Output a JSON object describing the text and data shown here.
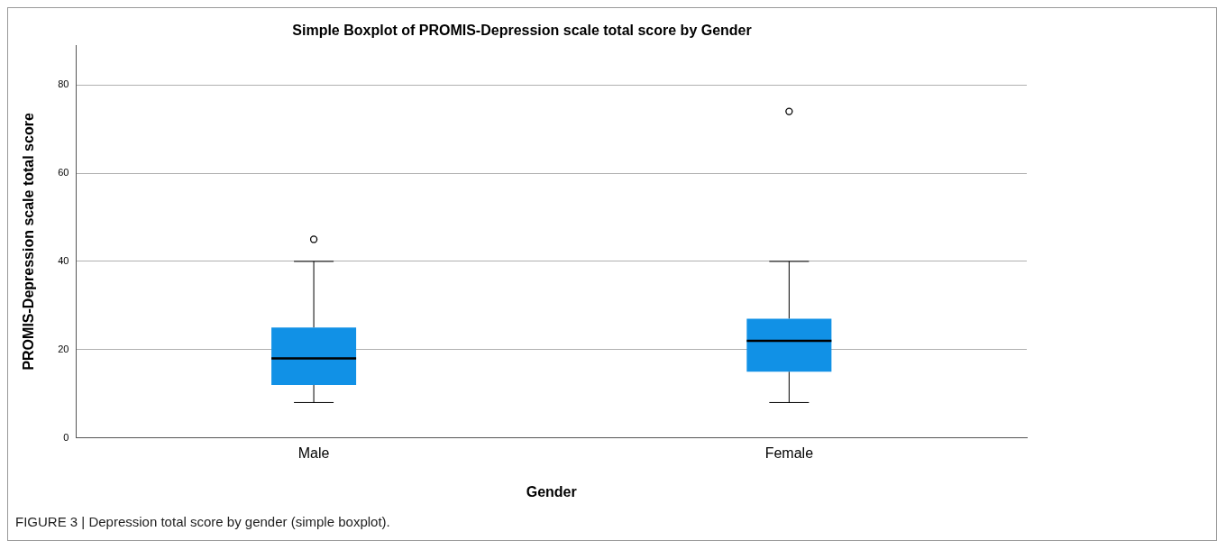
{
  "chart_data": {
    "type": "box",
    "title": "Simple Boxplot of PROMIS-Depression scale total score by Gender",
    "xlabel": "Gender",
    "ylabel": "PROMIS-Depression scale total score",
    "categories": [
      "Male",
      "Female"
    ],
    "color": "#1191e6",
    "boxes": [
      {
        "low": 8,
        "q1": 12,
        "median": 18,
        "q3": 25,
        "high": 40,
        "outliers": [
          45
        ]
      },
      {
        "low": 8,
        "q1": 15,
        "median": 22,
        "q3": 27,
        "high": 40,
        "outliers": [
          74
        ]
      }
    ],
    "ylim": [
      0,
      89
    ],
    "yticks": [
      0,
      20,
      40,
      60,
      80
    ],
    "grid": "y",
    "legend": false,
    "annotations": [
      "FIGURE 3 | Depression total score by gender (simple boxplot)."
    ]
  }
}
